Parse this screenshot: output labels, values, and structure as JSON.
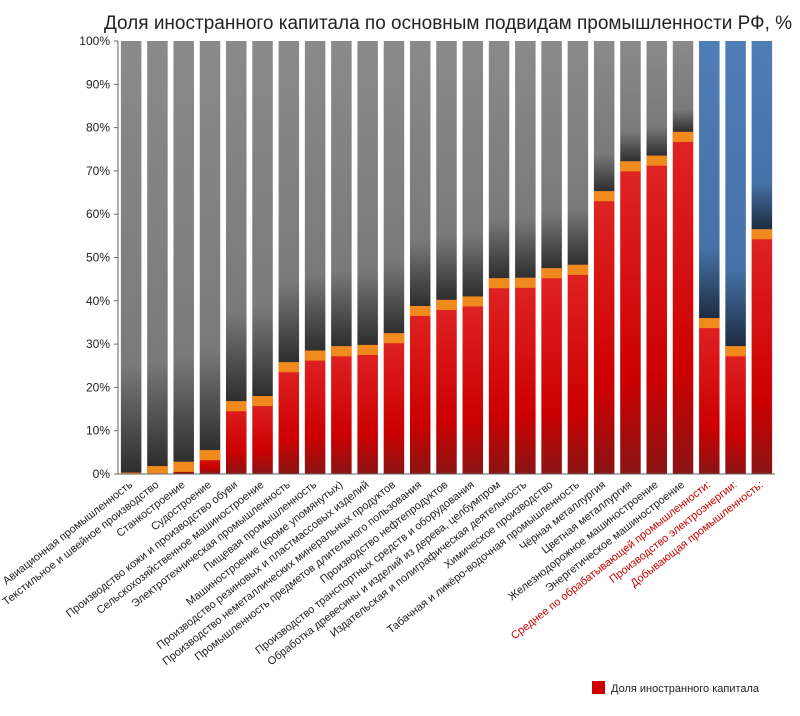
{
  "chart_data": {
    "type": "bar",
    "stacked_to": 100,
    "title": "Доля иностранного капитала по основным подвидам промышленности РФ, %",
    "ylim": [
      0,
      100
    ],
    "yticks": [
      "0%",
      "10%",
      "20%",
      "30%",
      "40%",
      "50%",
      "60%",
      "70%",
      "80%",
      "90%",
      "100%"
    ],
    "grid": false,
    "legend": {
      "position": "bottom-right",
      "label": "Доля иностранного капитала",
      "color": "#cc0000"
    },
    "colors": {
      "foreign": "#cc0000",
      "band": "#f08a1c",
      "rest_industry": "#7f7f7f",
      "rest_aggregate": "#4a78b0",
      "aggregate_label": "#cc0000",
      "label": "#222222"
    },
    "categories": [
      "Авиационная промышленность",
      "Текстильное и швейное производство",
      "Станкостроение",
      "Судостроение",
      "Производство кожи и производство обуви",
      "Сельскохозяйственное машиностроение",
      "Электротехническая промышленность",
      "Пищевая промышленность",
      "Машиностроение (кроме упомянутых)",
      "Производство резиновых и пластмассовых изделий",
      "Производство неметаллических минеральных продуктов",
      "Промышленность предметов длительного пользования",
      "Производство нефтепродуктов",
      "Производство транспортных средств и оборудования",
      "Обработка древесины и изделий из дерева, целбумпром",
      "Издательская и полиграфическая деятельность",
      "Химическое производство",
      "Табачная и ликёро-водочная промышленность",
      "Чёрная металлургия",
      "Цветная металлургия",
      "Железнодорожное машиностроение",
      "Энергетическое машиностроение",
      "Среднее по обрабатывающей промышленности:",
      "Производство электроэнергии:",
      "Добывающая промышленность:"
    ],
    "aggregate": [
      false,
      false,
      false,
      false,
      false,
      false,
      false,
      false,
      false,
      false,
      false,
      false,
      false,
      false,
      false,
      false,
      false,
      false,
      false,
      false,
      false,
      false,
      true,
      true,
      true
    ],
    "series": [
      {
        "name": "Доля иностранного капитала",
        "values": [
          0.3,
          1.8,
          2.8,
          5.5,
          16.8,
          18,
          25.8,
          28.5,
          29.5,
          29.8,
          32.5,
          38.8,
          40.2,
          41,
          45.2,
          45.3,
          47.5,
          48.3,
          65.3,
          72.2,
          73.5,
          79,
          36,
          29.5,
          56.5
        ]
      }
    ]
  }
}
